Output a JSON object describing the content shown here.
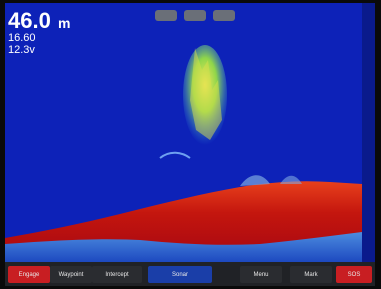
{
  "header": {
    "depth_value": "46.0",
    "depth_unit": "m",
    "temperature": "16.60",
    "voltage": "12.3v"
  },
  "toolbar": {
    "buttons": [
      "Engage",
      "Waypoint",
      "Intercept",
      "Sonar",
      "Menu",
      "Mark",
      "SOS"
    ]
  }
}
